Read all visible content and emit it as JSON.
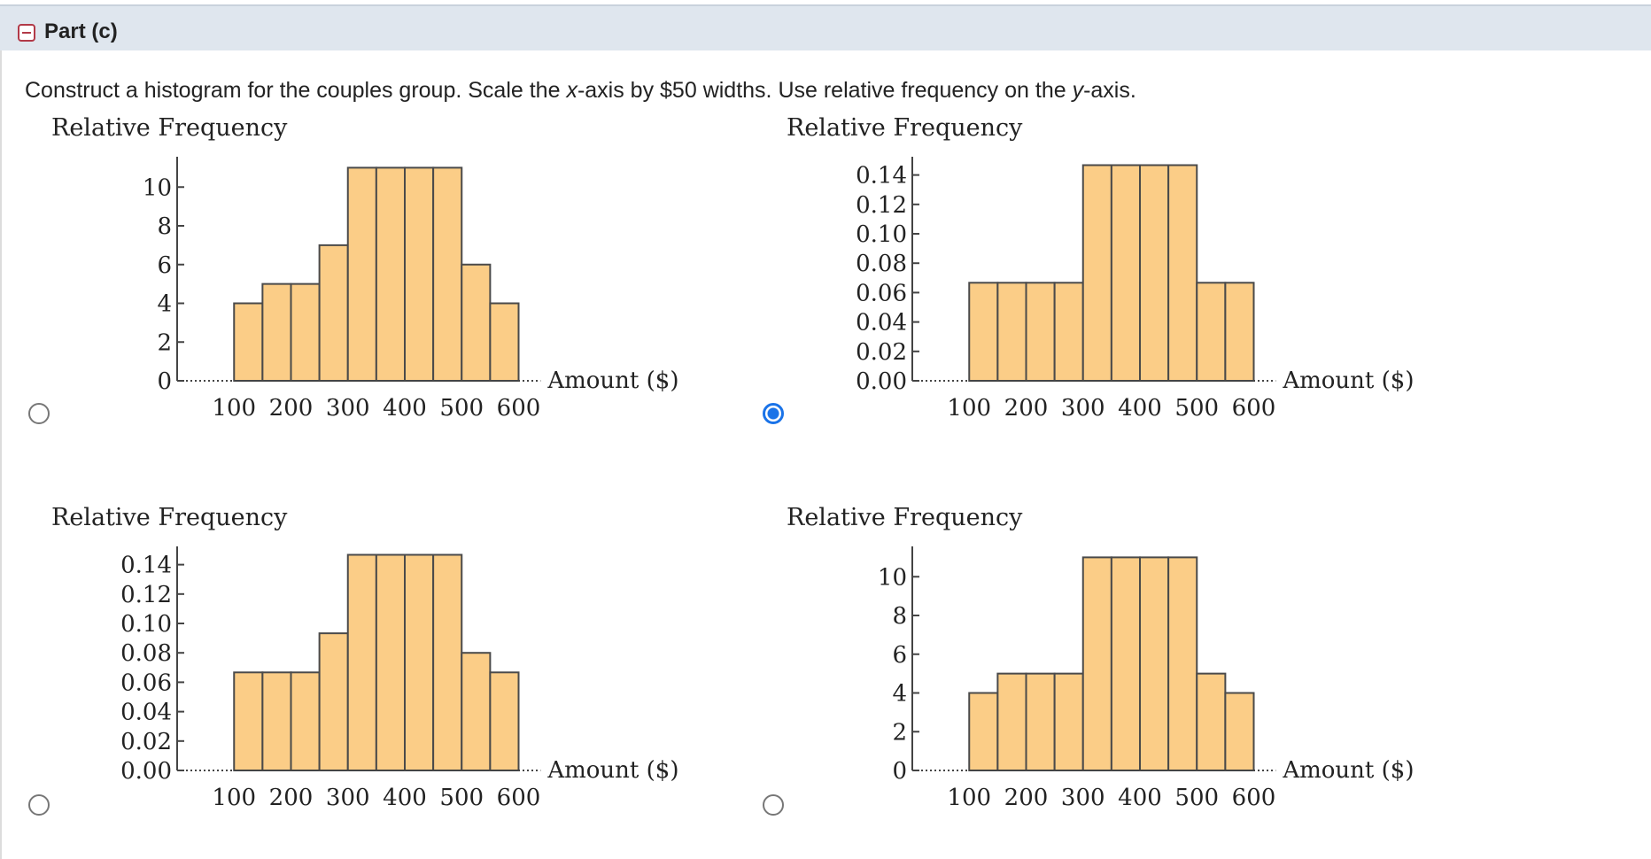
{
  "part_header": {
    "title": "Part (c)"
  },
  "question": {
    "parts": [
      "Construct a histogram for the couples group. Scale the ",
      "x",
      "-axis by $50 widths. Use relative frequency on the ",
      "y",
      "-axis."
    ]
  },
  "options": [
    {
      "selected": false,
      "chart_data": {
        "type": "bar",
        "title": "Relative Frequency",
        "ylabel": "Relative Frequency",
        "xlabel": "Amount ($)",
        "x_ticks": [
          100,
          200,
          300,
          400,
          500,
          600
        ],
        "x_tick_labels": [
          "100",
          "200",
          "300",
          "400",
          "500",
          "600"
        ],
        "y_ticks": [
          0,
          2,
          4,
          6,
          8,
          10
        ],
        "y_tick_labels": [
          "0",
          "2",
          "4",
          "6",
          "8",
          "10"
        ],
        "ylim": [
          0,
          11.2
        ],
        "xlim": [
          0,
          620
        ],
        "bin_width": 50,
        "bins_start": [
          100,
          150,
          200,
          250,
          300,
          350,
          400,
          450,
          500,
          550
        ],
        "values": [
          4,
          5,
          5,
          7,
          11,
          11,
          11,
          11,
          6,
          4
        ]
      }
    },
    {
      "selected": true,
      "chart_data": {
        "type": "bar",
        "title": "Relative Frequency",
        "ylabel": "Relative Frequency",
        "xlabel": "Amount ($)",
        "x_ticks": [
          100,
          200,
          300,
          400,
          500,
          600
        ],
        "x_tick_labels": [
          "100",
          "200",
          "300",
          "400",
          "500",
          "600"
        ],
        "y_ticks": [
          0,
          0.02,
          0.04,
          0.06,
          0.08,
          0.1,
          0.12,
          0.14
        ],
        "y_tick_labels": [
          "0.00",
          "0.02",
          "0.04",
          "0.06",
          "0.08",
          "0.10",
          "0.12",
          "0.14"
        ],
        "ylim": [
          0,
          0.1476
        ],
        "xlim": [
          0,
          620
        ],
        "bin_width": 50,
        "bins_start": [
          100,
          150,
          200,
          250,
          300,
          350,
          400,
          450,
          500,
          550
        ],
        "values": [
          0.0667,
          0.0667,
          0.0667,
          0.0667,
          0.1467,
          0.1467,
          0.1467,
          0.1467,
          0.0667,
          0.0667
        ]
      }
    },
    {
      "selected": false,
      "chart_data": {
        "type": "bar",
        "title": "Relative Frequency",
        "ylabel": "Relative Frequency",
        "xlabel": "Amount ($)",
        "x_ticks": [
          100,
          200,
          300,
          400,
          500,
          600
        ],
        "x_tick_labels": [
          "100",
          "200",
          "300",
          "400",
          "500",
          "600"
        ],
        "y_ticks": [
          0,
          0.02,
          0.04,
          0.06,
          0.08,
          0.1,
          0.12,
          0.14
        ],
        "y_tick_labels": [
          "0.00",
          "0.02",
          "0.04",
          "0.06",
          "0.08",
          "0.10",
          "0.12",
          "0.14"
        ],
        "ylim": [
          0,
          0.1476
        ],
        "xlim": [
          0,
          620
        ],
        "bin_width": 50,
        "bins_start": [
          100,
          150,
          200,
          250,
          300,
          350,
          400,
          450,
          500,
          550
        ],
        "values": [
          0.0667,
          0.0667,
          0.0667,
          0.0933,
          0.1467,
          0.1467,
          0.1467,
          0.1467,
          0.08,
          0.0667
        ]
      }
    },
    {
      "selected": false,
      "chart_data": {
        "type": "bar",
        "title": "Relative Frequency",
        "ylabel": "Relative Frequency",
        "xlabel": "Amount ($)",
        "x_ticks": [
          100,
          200,
          300,
          400,
          500,
          600
        ],
        "x_tick_labels": [
          "100",
          "200",
          "300",
          "400",
          "500",
          "600"
        ],
        "y_ticks": [
          0,
          2,
          4,
          6,
          8,
          10
        ],
        "y_tick_labels": [
          "0",
          "2",
          "4",
          "6",
          "8",
          "10"
        ],
        "ylim": [
          0,
          11.2
        ],
        "xlim": [
          0,
          620
        ],
        "bin_width": 50,
        "bins_start": [
          100,
          150,
          200,
          250,
          300,
          350,
          400,
          450,
          500,
          550
        ],
        "values": [
          4,
          5,
          5,
          5,
          11,
          11,
          11,
          11,
          5,
          4
        ]
      }
    }
  ],
  "colors": {
    "bar_fill": "#fbcd87",
    "bar_stroke": "#4a4a4a",
    "radio_selected": "#1a73e8",
    "header_bg": "#dfe6ee",
    "toggle_border": "#b23a48"
  }
}
